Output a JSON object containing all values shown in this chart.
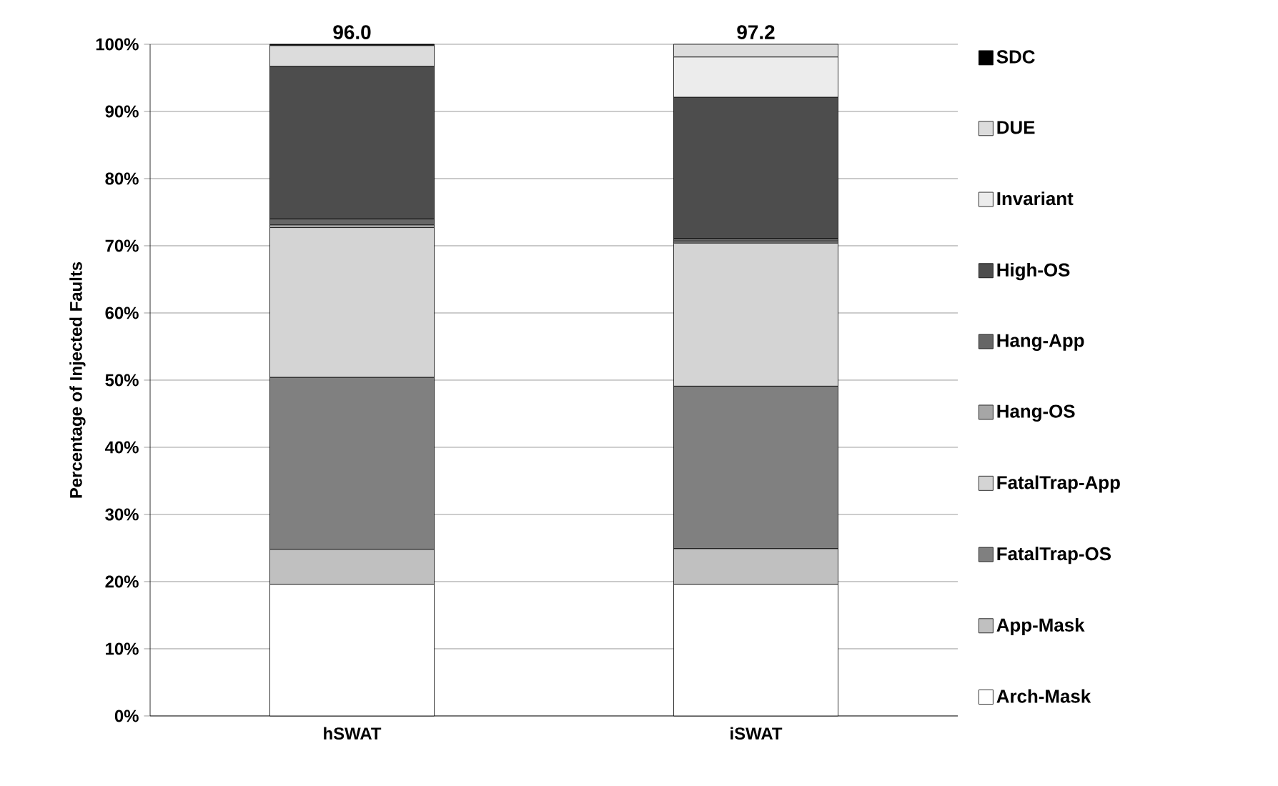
{
  "chart_data": {
    "type": "bar",
    "stacked": true,
    "ylabel": "Percentage of Injected Faults",
    "categories": [
      "hSWAT",
      "iSWAT"
    ],
    "series": [
      {
        "name": "Arch-Mask",
        "color": "#ffffff",
        "values": [
          19.6,
          19.6
        ]
      },
      {
        "name": "App-Mask",
        "color": "#c0c0c0",
        "values": [
          5.2,
          5.3
        ]
      },
      {
        "name": "FatalTrap-OS",
        "color": "#808080",
        "values": [
          25.6,
          24.2
        ]
      },
      {
        "name": "FatalTrap-App",
        "color": "#d4d4d4",
        "values": [
          22.3,
          21.3
        ]
      },
      {
        "name": "Hang-OS",
        "color": "#a6a6a6",
        "values": [
          0.4,
          0.3
        ]
      },
      {
        "name": "Hang-App",
        "color": "#666666",
        "values": [
          0.9,
          0.4
        ]
      },
      {
        "name": "High-OS",
        "color": "#4d4d4d",
        "values": [
          22.7,
          21.0
        ]
      },
      {
        "name": "Invariant",
        "color": "#ececec",
        "values": [
          0,
          6.0
        ]
      },
      {
        "name": "DUE",
        "color": "#dcdcdc",
        "values": [
          3.1,
          1.9
        ]
      },
      {
        "name": "SDC",
        "color": "#000000",
        "values": [
          0.2,
          0
        ]
      }
    ],
    "ylim": [
      0,
      100
    ],
    "yticks": [
      {
        "value": 0,
        "label": "0%"
      },
      {
        "value": 10,
        "label": "10%"
      },
      {
        "value": 20,
        "label": "20%"
      },
      {
        "value": 30,
        "label": "30%"
      },
      {
        "value": 40,
        "label": "40%"
      },
      {
        "value": 50,
        "label": "50%"
      },
      {
        "value": 60,
        "label": "60%"
      },
      {
        "value": 70,
        "label": "70%"
      },
      {
        "value": 80,
        "label": "80%"
      },
      {
        "value": 90,
        "label": "90%"
      },
      {
        "value": 100,
        "label": "100%"
      }
    ],
    "grid": "y",
    "legend": "right",
    "annotations": [
      "96.0",
      "97.2"
    ]
  }
}
